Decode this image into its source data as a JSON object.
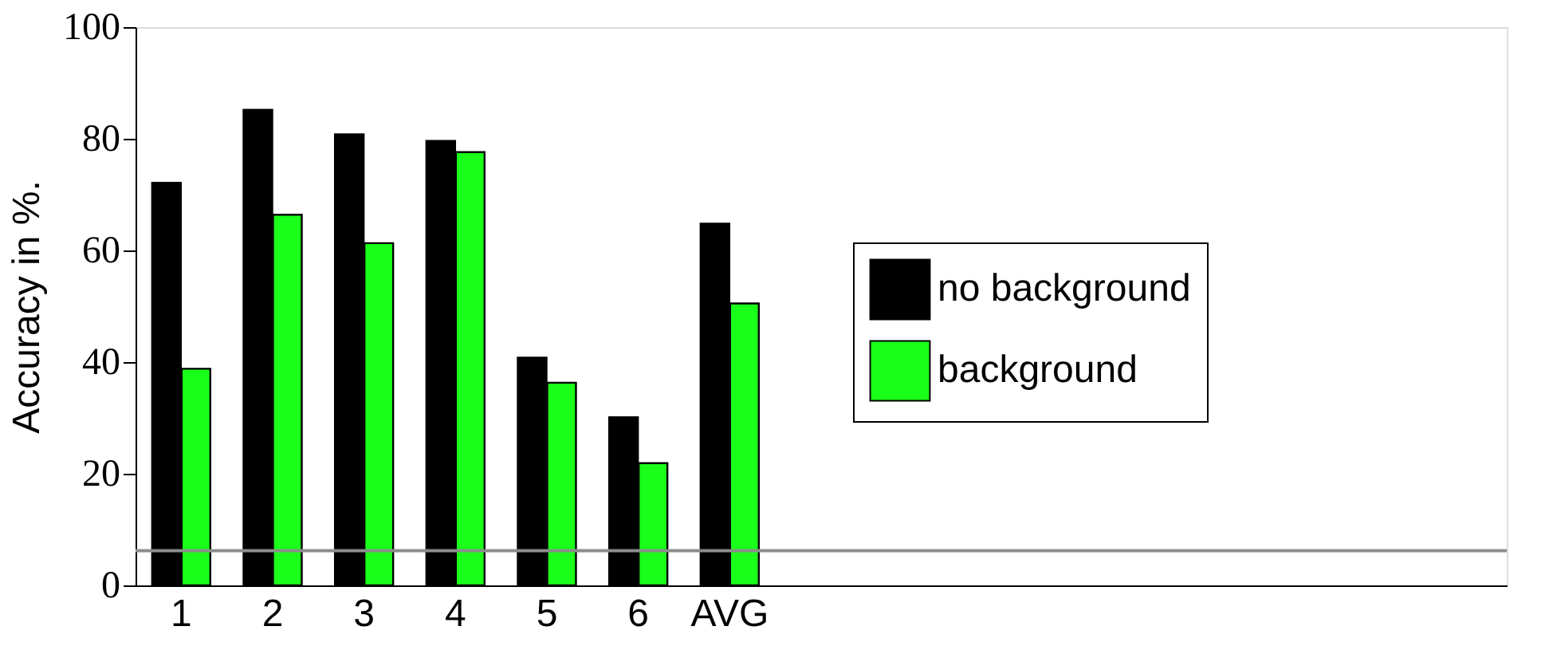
{
  "chart_data": {
    "type": "bar",
    "ylabel": "Accuracy in %.",
    "categories": [
      "1",
      "2",
      "3",
      "4",
      "5",
      "6",
      "AVG",
      null,
      null,
      null,
      null,
      null,
      null,
      null,
      null
    ],
    "series": [
      {
        "name": "no background",
        "color": "#000000",
        "values": [
          72.1,
          85.2,
          80.8,
          79.6,
          40.8,
          30.1,
          64.8,
          null,
          null,
          null,
          null,
          null,
          null,
          null,
          null
        ]
      },
      {
        "name": "background",
        "color": "#1aff1a",
        "values": [
          38.8,
          66.4,
          61.3,
          77.6,
          36.3,
          21.9,
          50.5,
          null,
          null,
          null,
          null,
          null,
          null,
          null,
          null
        ]
      }
    ],
    "ylim": [
      0,
      100
    ],
    "yticks": [
      0,
      20,
      40,
      60,
      80,
      100
    ],
    "ref_lines": [
      {
        "axis": "y",
        "value": 6.2,
        "color": "#8c8c8c"
      }
    ],
    "grid": false,
    "legend": "right"
  }
}
